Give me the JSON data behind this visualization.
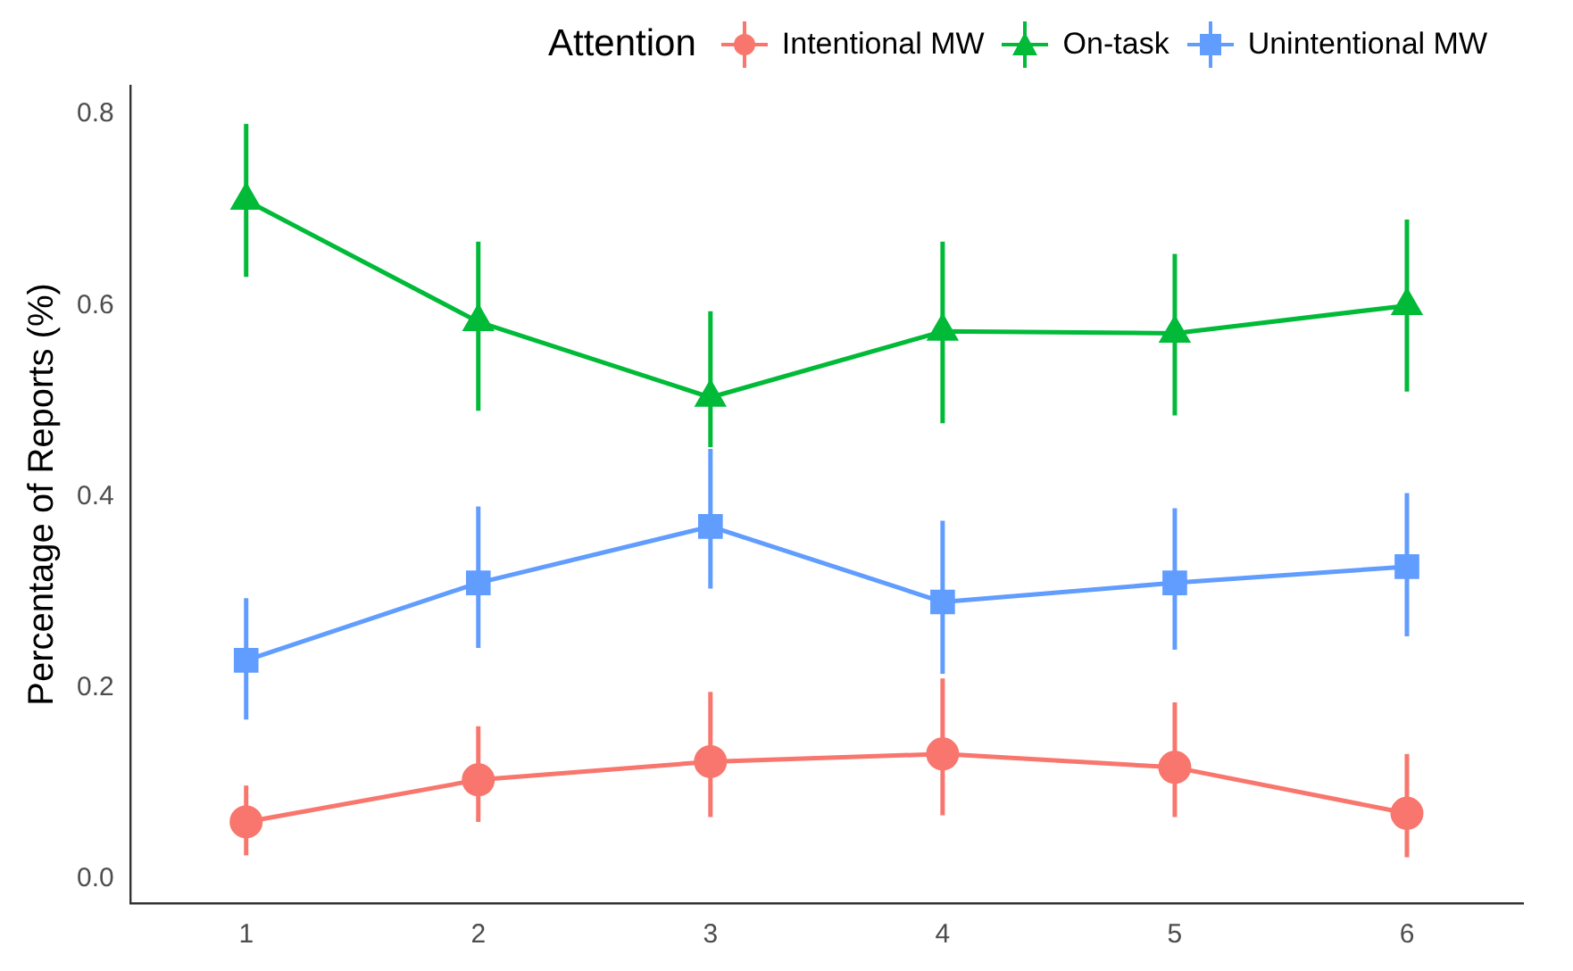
{
  "chart_data": {
    "type": "line",
    "ylabel": "Percentage of Reports (%)",
    "legend_title": "Attention",
    "legend": "top",
    "grid": false,
    "categories": [
      "1",
      "2",
      "3",
      "4",
      "5",
      "6"
    ],
    "ylim": [
      -0.025,
      0.83
    ],
    "yticks": [
      {
        "value": 0,
        "label": "0.0"
      },
      {
        "value": 0.2,
        "label": "0.2"
      },
      {
        "value": 0.4,
        "label": "0.4"
      },
      {
        "value": 0.6,
        "label": "0.6"
      },
      {
        "value": 0.8,
        "label": "0.8"
      }
    ],
    "series": [
      {
        "name": "Intentional MW",
        "color": "#f8766d",
        "marker": "circle",
        "values": [
          0.06,
          0.104,
          0.123,
          0.131,
          0.117,
          0.069
        ],
        "errors": [
          [
            0.025,
            0.098
          ],
          [
            0.06,
            0.16
          ],
          [
            0.065,
            0.196
          ],
          [
            0.067,
            0.21
          ],
          [
            0.065,
            0.185
          ],
          [
            0.023,
            0.131
          ]
        ]
      },
      {
        "name": "On-task",
        "color": "#00ba38",
        "marker": "triangle",
        "values": [
          0.71,
          0.583,
          0.504,
          0.573,
          0.571,
          0.6
        ],
        "errors": [
          [
            0.63,
            0.79
          ],
          [
            0.49,
            0.667
          ],
          [
            0.452,
            0.594
          ],
          [
            0.477,
            0.667
          ],
          [
            0.485,
            0.654
          ],
          [
            0.51,
            0.69
          ]
        ]
      },
      {
        "name": "Unintentional MW",
        "color": "#619cff",
        "marker": "square",
        "values": [
          0.229,
          0.31,
          0.369,
          0.29,
          0.31,
          0.327
        ],
        "errors": [
          [
            0.167,
            0.294
          ],
          [
            0.242,
            0.39
          ],
          [
            0.304,
            0.45
          ],
          [
            0.215,
            0.375
          ],
          [
            0.24,
            0.388
          ],
          [
            0.254,
            0.404
          ]
        ]
      }
    ]
  }
}
